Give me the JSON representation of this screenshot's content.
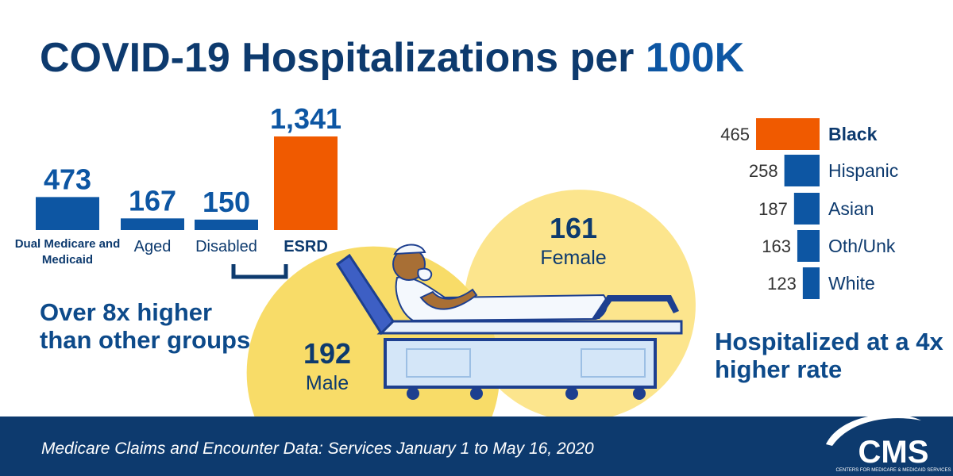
{
  "title": "COVID-19 Hospitalizations per",
  "title_emphasis": "100K",
  "chart_data": [
    {
      "type": "bar",
      "categories": [
        "Dual Medicare and Medicaid",
        "Aged",
        "Disabled",
        "ESRD"
      ],
      "values": [
        473,
        167,
        150,
        1341
      ],
      "value_labels": [
        "473",
        "167",
        "150",
        "1,341"
      ],
      "colors": [
        "#0d56a3",
        "#0d56a3",
        "#0d56a3",
        "#f05a00"
      ],
      "annotation": "Over 8x higher than other groups"
    },
    {
      "type": "bubble",
      "categories": [
        "Male",
        "Female"
      ],
      "values": [
        192,
        161
      ],
      "colors": [
        "#f8dc68",
        "#fce58d"
      ]
    },
    {
      "type": "hbar",
      "categories": [
        "Black",
        "Hispanic",
        "Asian",
        "Oth/Unk",
        "White"
      ],
      "values": [
        465,
        258,
        187,
        163,
        123
      ],
      "colors": [
        "#f05a00",
        "#0d56a3",
        "#0d56a3",
        "#0d56a3",
        "#0d56a3"
      ],
      "annotation": "Hospitalized at a 4x higher rate"
    }
  ],
  "footer": "Medicare Claims and Encounter Data: Services January 1 to May 16, 2020",
  "logo": "CMS",
  "logo_subtitle": "CENTERS FOR MEDICARE & MEDICAID SERVICES"
}
